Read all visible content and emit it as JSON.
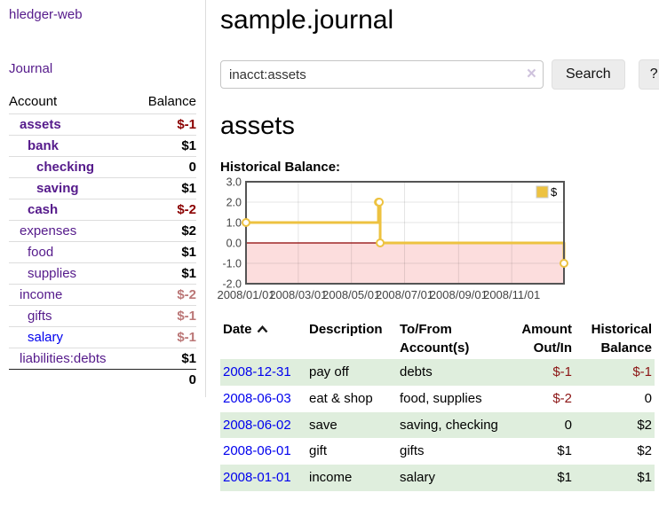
{
  "app": {
    "brand": "hledger-web",
    "nav_journal": "Journal"
  },
  "sidebar": {
    "col_account": "Account",
    "col_balance": "Balance",
    "accounts": [
      {
        "name": "assets",
        "indent": 1,
        "balance": "$-1",
        "bold": true,
        "tone": "strong",
        "link": "purple"
      },
      {
        "name": "bank",
        "indent": 2,
        "balance": "$1",
        "bold": true,
        "tone": "none",
        "link": "purple"
      },
      {
        "name": "checking",
        "indent": 3,
        "balance": "0",
        "bold": true,
        "tone": "none",
        "link": "purple"
      },
      {
        "name": "saving",
        "indent": 3,
        "balance": "$1",
        "bold": true,
        "tone": "none",
        "link": "purple"
      },
      {
        "name": "cash",
        "indent": 2,
        "balance": "$-2",
        "bold": true,
        "tone": "strong",
        "link": "purple"
      },
      {
        "name": "expenses",
        "indent": 1,
        "balance": "$2",
        "bold": false,
        "tone": "none",
        "link": "purple"
      },
      {
        "name": "food",
        "indent": 2,
        "balance": "$1",
        "bold": false,
        "tone": "none",
        "link": "purple"
      },
      {
        "name": "supplies",
        "indent": 2,
        "balance": "$1",
        "bold": false,
        "tone": "none",
        "link": "purple"
      },
      {
        "name": "income",
        "indent": 1,
        "balance": "$-2",
        "bold": false,
        "tone": "muted",
        "link": "purple"
      },
      {
        "name": "gifts",
        "indent": 2,
        "balance": "$-1",
        "bold": false,
        "tone": "muted",
        "link": "purple"
      },
      {
        "name": "salary",
        "indent": 2,
        "balance": "$-1",
        "bold": false,
        "tone": "muted",
        "link": "blue"
      },
      {
        "name": "liabilities:debts",
        "indent": 1,
        "balance": "$1",
        "bold": false,
        "tone": "none",
        "link": "purple"
      }
    ],
    "total": "0"
  },
  "header": {
    "title": "sample.journal"
  },
  "search": {
    "value": "inacct:assets",
    "clear_icon": "×",
    "button_label": "Search",
    "help_label": "?"
  },
  "account_page": {
    "heading": "assets",
    "chart_label": "Historical Balance:"
  },
  "chart_data": {
    "type": "line",
    "step": true,
    "title": "Historical Balance",
    "series": [
      {
        "name": "$",
        "color": "#EDC240",
        "points": [
          {
            "date": "2008-01-01",
            "x": 0,
            "y": 1
          },
          {
            "date": "2008-06-01",
            "x": 152,
            "y": 2
          },
          {
            "date": "2008-06-02",
            "x": 153,
            "y": 2
          },
          {
            "date": "2008-06-03",
            "x": 154,
            "y": 0
          },
          {
            "date": "2008-12-31",
            "x": 365,
            "y": -1
          }
        ]
      }
    ],
    "xlim": [
      0,
      365
    ],
    "ylim": [
      -2,
      3
    ],
    "x_ticks": [
      {
        "x": 0,
        "label": "2008/01/01"
      },
      {
        "x": 60,
        "label": "2008/03/01"
      },
      {
        "x": 121,
        "label": "2008/05/01"
      },
      {
        "x": 182,
        "label": "2008/07/01"
      },
      {
        "x": 244,
        "label": "2008/09/01"
      },
      {
        "x": 305,
        "label": "2008/11/01"
      }
    ],
    "y_ticks": [
      {
        "y": 3,
        "label": "3.0"
      },
      {
        "y": 2,
        "label": "2.0"
      },
      {
        "y": 1,
        "label": "1.0"
      },
      {
        "y": 0,
        "label": "0.0"
      },
      {
        "y": -1,
        "label": "-1.0"
      },
      {
        "y": -2,
        "label": "-2.0"
      }
    ],
    "legend": {
      "label": "$",
      "position": "top-right",
      "swatch_color": "#EDC240"
    },
    "grid": true,
    "negative_region_color": "#fcdddd",
    "zero_line_color": "#8b0000",
    "border_color": "#545454",
    "tick_label_color": "#444444"
  },
  "register": {
    "columns": {
      "date": "Date",
      "description": "Description",
      "accounts": "To/From Account(s)",
      "amount": "Amount Out/In",
      "balance": "Historical Balance"
    },
    "sort": {
      "column": "date",
      "direction": "asc"
    },
    "rows": [
      {
        "date": "2008-12-31",
        "description": "pay off",
        "accounts": "debts",
        "amount": "$-1",
        "amount_neg": true,
        "balance": "$-1",
        "balance_neg": true
      },
      {
        "date": "2008-06-03",
        "description": "eat & shop",
        "accounts": "food, supplies",
        "amount": "$-2",
        "amount_neg": true,
        "balance": "0",
        "balance_neg": false
      },
      {
        "date": "2008-06-02",
        "description": "save",
        "accounts": "saving, checking",
        "amount": "0",
        "amount_neg": false,
        "balance": "$2",
        "balance_neg": false
      },
      {
        "date": "2008-06-01",
        "description": "gift",
        "accounts": "gifts",
        "amount": "$1",
        "amount_neg": false,
        "balance": "$2",
        "balance_neg": false
      },
      {
        "date": "2008-01-01",
        "description": "income",
        "accounts": "salary",
        "amount": "$1",
        "amount_neg": false,
        "balance": "$1",
        "balance_neg": false
      }
    ]
  }
}
